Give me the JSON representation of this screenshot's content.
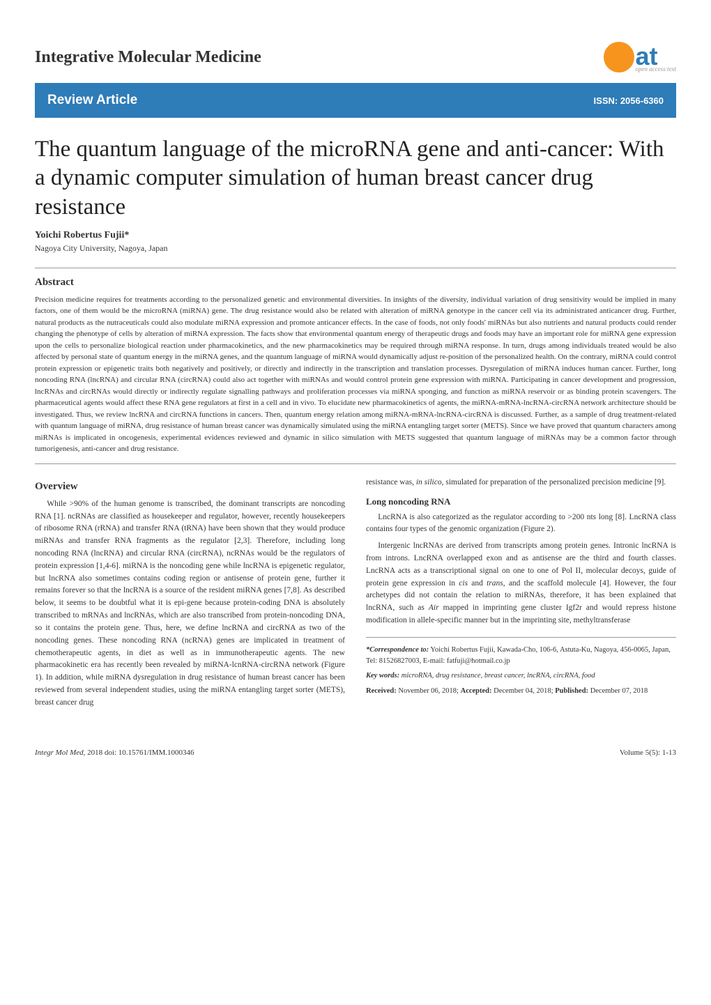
{
  "header": {
    "journal_title": "Integrative Molecular Medicine",
    "logo_at": "at",
    "logo_sub": "open access text",
    "logo_circle_color": "#f7941e",
    "logo_text_color": "#2e7cb8"
  },
  "review_bar": {
    "label": "Review Article",
    "issn": "ISSN: 2056-6360",
    "bg_color": "#2e7cb8"
  },
  "article": {
    "title": "The quantum language of the microRNA gene and anti-cancer: With a dynamic computer simulation of human breast cancer drug resistance",
    "author": "Yoichi Robertus Fujii*",
    "affiliation": "Nagoya City University, Nagoya, Japan"
  },
  "abstract": {
    "heading": "Abstract",
    "text": "Precision medicine requires for treatments according to the personalized genetic and environmental diversities. In insights of the diversity, individual variation of drug sensitivity would be implied in many factors, one of them would be the microRNA (miRNA) gene. The drug resistance would also be related with alteration of miRNA genotype in the cancer cell via its administrated anticancer drug. Further, natural products as the nutraceuticals could also modulate miRNA expression and promote anticancer effects. In the case of foods, not only foods' miRNAs but also nutrients and natural products could render changing the phenotype of cells by alteration of miRNA expression. The facts show that environmental quantum energy of therapeutic drugs and foods may have an important role for miRNA gene expression upon the cells to personalize biological reaction under pharmacokinetics, and the new pharmacokinetics may be required through miRNA response. In turn, drugs among individuals treated would be also affected by personal state of quantum energy in the miRNA genes, and the quantum language of miRNA would dynamically adjust re-position of the personalized health. On the contrary, miRNA could control protein expression or epigenetic traits both negatively and positively, or directly and indirectly in the transcription and translation processes. Dysregulation of miRNA induces human cancer. Further, long noncoding RNA (lncRNA) and circular RNA (circRNA) could also act together with miRNAs and would control protein gene expression with miRNA. Participating in cancer development and progression, lncRNAs and circRNAs would directly or indirectly regulate signalling pathways and proliferation processes via miRNA sponging, and function as miRNA reservoir or as binding protein scavengers. The pharmaceutical agents would affect these RNA gene regulators at first in a cell and in vivo. To elucidate new pharmacokinetics of agents, the miRNA-mRNA-lncRNA-circRNA network architecture should be investigated. Thus, we review lncRNA and circRNA functions in cancers. Then, quantum energy relation among miRNA-mRNA-lncRNA-circRNA is discussed. Further, as a sample of drug treatment-related with quantum language of miRNA, drug resistance of human breast cancer was dynamically simulated using the miRNA entangling target sorter (METS). Since we have proved that quantum characters among miRNAs is implicated in oncogenesis, experimental evidences reviewed and dynamic in silico simulation with METS suggested that quantum language of miRNAs may be a common factor through tumorigenesis, anti-cancer and drug resistance."
  },
  "overview": {
    "heading": "Overview",
    "p1": "While >90% of the human genome is transcribed, the dominant transcripts are noncoding RNA [1]. ncRNAs are classified as housekeeper and regulator, however, recently housekeepers of ribosome RNA (rRNA) and transfer RNA (tRNA) have been shown that they would produce miRNAs and transfer RNA fragments as the regulator [2,3]. Therefore, including long noncoding RNA (lncRNA) and circular RNA (circRNA), ncRNAs would be the regulators of protein expression [1,4-6]. miRNA is the noncoding gene while lncRNA is epigenetic regulator, but lncRNA also sometimes contains coding region or antisense of protein gene, further it remains forever so that the lncRNA is a source of the resident miRNA genes [7,8]. As described below, it seems to be doubtful what it is epi-gene because protein-coding DNA is absolutely transcribed to mRNAs and lncRNAs, which are also transcribed from protein-noncoding DNA, so it contains the protein gene. Thus, here, we define lncRNA and circRNA as two of the noncoding genes. These noncoding RNA (ncRNA) genes are implicated in treatment of chemotherapeutic agents, in diet as well as in immunotherapeutic agents. The new pharmacokinetic era has recently been revealed by miRNA-lcnRNA-circRNA network (Figure 1). In addition, while miRNA dysregulation in drug resistance of human breast cancer has been reviewed from several independent studies, using the miRNA entangling target sorter (METS), breast cancer drug",
    "p2_right": "resistance was, in silico, simulated for preparation of the personalized precision medicine [9]."
  },
  "lncrna": {
    "heading": "Long noncoding RNA",
    "p1": "LncRNA is also categorized as the regulator according to >200 nts long [8]. LncRNA class contains four types of the genomic organization (Figure 2).",
    "p2": "Intergenic lncRNAs are derived from transcripts among protein genes. Intronic lncRNA is from introns. LncRNA overlapped exon and as antisense are the third and fourth classes. LncRNA acts as a transcriptional signal on one to one of Pol II, molecular decoys, guide of protein gene expression in cis and trans, and the scaffold molecule [4]. However, the four archetypes did not contain the relation to miRNAs, therefore, it has been explained that lncRNA, such as Air mapped in imprinting gene cluster Igf2r and would repress histone modification in allele-specific manner but in the imprinting site, methyltransferase"
  },
  "footer_info": {
    "correspondence_label": "*Correspondence to:",
    "correspondence_text": " Yoichi Robertus Fujii, Kawada-Cho, 106-6, Astuta-Ku, Nagoya, 456-0065, Japan, Tel: 81526827003, E-mail: fatfuji@hotmail.co.jp",
    "keywords_label": "Key words:",
    "keywords_text": " microRNA, drug resistance, breast cancer, lncRNA, circRNA, food",
    "received_label": "Received:",
    "received_text": " November 06, 2018; ",
    "accepted_label": "Accepted:",
    "accepted_text": " December 04, 2018; ",
    "published_label": "Published:",
    "published_text": " December 07, 2018"
  },
  "page_footer": {
    "left_journal": "Integr Mol Med,",
    "left_rest": " 2018   doi: 10.15761/IMM.1000346",
    "right": "Volume 5(5): 1-13"
  }
}
